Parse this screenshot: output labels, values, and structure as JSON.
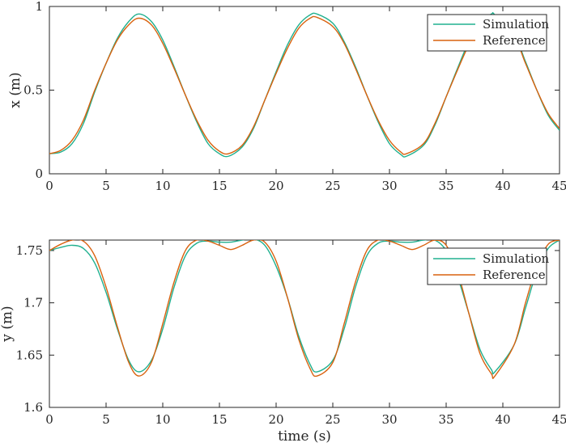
{
  "colors": {
    "simulation": "#20b08f",
    "reference": "#d9620f",
    "axis": "#262626"
  },
  "chart_data": [
    {
      "type": "line",
      "xlabel": "",
      "ylabel": "x (m)",
      "xlim": [
        0,
        45
      ],
      "ylim": [
        0,
        1
      ],
      "xticks": [
        "0",
        "5",
        "10",
        "15",
        "20",
        "25",
        "30",
        "35",
        "40",
        "45"
      ],
      "yticks": [
        "0",
        "0.5",
        "1"
      ],
      "legend": {
        "placement": "top-right",
        "entries": [
          "Simulation",
          "Reference"
        ]
      },
      "grid": false,
      "series": [
        {
          "name": "Simulation",
          "x": [
            0,
            1,
            2,
            3,
            4,
            5,
            6,
            7,
            7.9,
            9,
            10,
            11,
            12,
            13,
            14,
            15,
            15.8,
            17,
            18,
            19,
            20,
            21,
            22,
            23,
            23.6,
            25,
            26,
            27,
            28,
            29,
            30,
            31,
            31.5,
            33,
            34,
            35,
            36,
            37,
            38,
            39,
            39.3,
            41,
            42,
            43,
            44,
            45
          ],
          "y": [
            0.12,
            0.13,
            0.18,
            0.3,
            0.49,
            0.66,
            0.81,
            0.91,
            0.955,
            0.91,
            0.8,
            0.64,
            0.47,
            0.31,
            0.18,
            0.12,
            0.105,
            0.16,
            0.27,
            0.44,
            0.61,
            0.77,
            0.89,
            0.95,
            0.955,
            0.9,
            0.79,
            0.64,
            0.47,
            0.31,
            0.18,
            0.115,
            0.105,
            0.17,
            0.29,
            0.46,
            0.63,
            0.79,
            0.91,
            0.955,
            0.95,
            0.83,
            0.67,
            0.5,
            0.35,
            0.26
          ]
        },
        {
          "name": "Reference",
          "x": [
            0,
            1,
            2,
            3,
            4,
            5,
            6,
            7,
            7.9,
            9,
            10,
            11,
            12,
            13,
            14,
            15,
            15.8,
            17,
            18,
            19,
            20,
            21,
            22,
            23,
            23.6,
            25,
            26,
            27,
            28,
            29,
            30,
            31,
            31.5,
            33,
            34,
            35,
            36,
            37,
            38,
            39,
            39.3,
            41,
            42,
            43,
            44,
            45
          ],
          "y": [
            0.12,
            0.14,
            0.2,
            0.32,
            0.5,
            0.66,
            0.8,
            0.89,
            0.93,
            0.89,
            0.78,
            0.63,
            0.47,
            0.32,
            0.2,
            0.135,
            0.12,
            0.17,
            0.28,
            0.44,
            0.6,
            0.75,
            0.87,
            0.93,
            0.935,
            0.88,
            0.78,
            0.63,
            0.47,
            0.32,
            0.2,
            0.13,
            0.12,
            0.18,
            0.3,
            0.46,
            0.62,
            0.77,
            0.88,
            0.93,
            0.935,
            0.82,
            0.66,
            0.5,
            0.36,
            0.27
          ]
        }
      ]
    },
    {
      "type": "line",
      "xlabel": "time (s)",
      "ylabel": "y (m)",
      "xlim": [
        0,
        45
      ],
      "ylim": [
        1.6,
        1.76
      ],
      "xticks": [
        "0",
        "5",
        "10",
        "15",
        "20",
        "25",
        "30",
        "35",
        "40",
        "45"
      ],
      "yticks": [
        "1.6",
        "1.65",
        "1.7",
        "1.75"
      ],
      "legend": {
        "placement": "top-right",
        "entries": [
          "Simulation",
          "Reference"
        ]
      },
      "grid": false,
      "series": [
        {
          "name": "Simulation",
          "x": [
            0,
            1,
            2,
            3,
            4,
            5,
            6,
            7,
            7.9,
            9,
            10,
            11,
            12,
            13,
            14,
            15,
            16,
            17,
            18,
            19,
            20,
            21,
            22,
            23,
            23.6,
            25,
            26,
            27,
            28,
            29,
            30,
            31,
            32,
            33,
            34,
            35,
            36,
            37,
            38,
            39,
            39.3,
            41,
            42,
            43,
            44,
            45
          ],
          "y": [
            1.75,
            1.753,
            1.755,
            1.752,
            1.738,
            1.71,
            1.675,
            1.645,
            1.634,
            1.645,
            1.675,
            1.715,
            1.745,
            1.757,
            1.759,
            1.758,
            1.758,
            1.76,
            1.761,
            1.755,
            1.735,
            1.705,
            1.668,
            1.641,
            1.634,
            1.645,
            1.675,
            1.715,
            1.745,
            1.757,
            1.759,
            1.758,
            1.758,
            1.76,
            1.76,
            1.75,
            1.725,
            1.69,
            1.655,
            1.636,
            1.634,
            1.66,
            1.695,
            1.73,
            1.752,
            1.76
          ]
        },
        {
          "name": "Reference",
          "x": [
            0,
            1,
            2,
            3,
            4,
            5,
            6,
            7,
            7.9,
            9,
            10,
            11,
            12,
            13,
            14,
            15,
            16,
            17,
            18,
            19,
            20,
            21,
            22,
            23,
            23.6,
            25,
            26,
            27,
            28,
            29,
            30,
            31,
            32,
            33,
            34,
            35,
            36,
            37,
            38,
            39,
            39.3,
            41,
            42,
            43,
            44,
            45
          ],
          "y": [
            1.75,
            1.756,
            1.76,
            1.759,
            1.745,
            1.715,
            1.677,
            1.643,
            1.63,
            1.643,
            1.68,
            1.72,
            1.75,
            1.76,
            1.759,
            1.755,
            1.751,
            1.755,
            1.76,
            1.758,
            1.74,
            1.705,
            1.665,
            1.637,
            1.63,
            1.643,
            1.68,
            1.72,
            1.75,
            1.76,
            1.759,
            1.755,
            1.751,
            1.755,
            1.76,
            1.755,
            1.73,
            1.69,
            1.651,
            1.632,
            1.63,
            1.66,
            1.7,
            1.735,
            1.756,
            1.76
          ]
        }
      ]
    }
  ]
}
